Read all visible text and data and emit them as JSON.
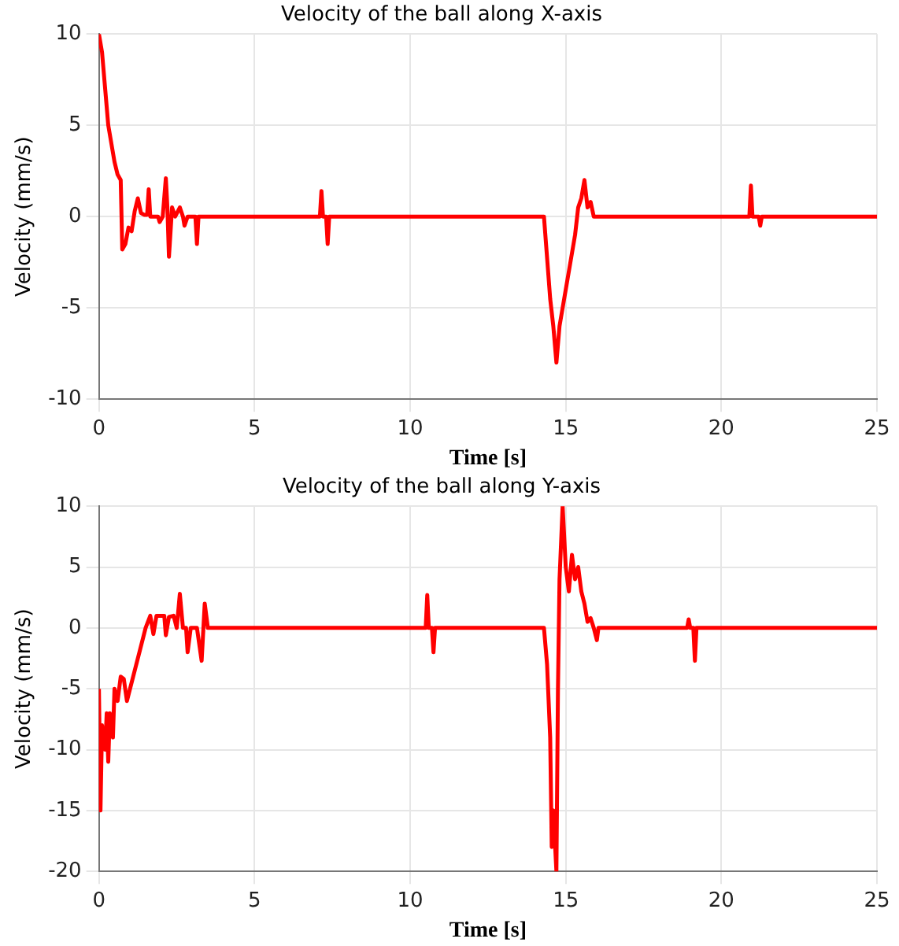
{
  "chart_data": [
    {
      "type": "line",
      "title": "Velocity of the ball along X-axis",
      "xlabel": "Time [s]",
      "ylabel": "Velocity (mm/s)",
      "xlim": [
        0,
        25
      ],
      "xticks": [
        0,
        5,
        10,
        15,
        20,
        25
      ],
      "ylim": [
        -10,
        10
      ],
      "yticks": [
        -10,
        -5,
        0,
        5,
        10
      ],
      "grid": true,
      "legend": false,
      "marker": "none",
      "series": [
        {
          "color": "#ff0000",
          "x": [
            0,
            0.1,
            0.2,
            0.3,
            0.4,
            0.5,
            0.6,
            0.7,
            0.75,
            0.85,
            0.95,
            1.05,
            1.15,
            1.25,
            1.35,
            1.45,
            1.55,
            1.6,
            1.65,
            1.9,
            1.95,
            2.05,
            2.15,
            2.2,
            2.25,
            2.35,
            2.45,
            2.6,
            2.7,
            2.75,
            2.85,
            3.1,
            3.15,
            3.2,
            7.1,
            7.15,
            7.2,
            7.3,
            7.35,
            7.4,
            14.3,
            14.5,
            14.6,
            14.7,
            14.8,
            14.9,
            15,
            15.1,
            15.2,
            15.3,
            15.4,
            15.5,
            15.6,
            15.7,
            15.8,
            15.9,
            20.9,
            20.95,
            21,
            21.2,
            21.25,
            21.3,
            25
          ],
          "values": [
            10,
            9,
            7,
            5,
            4,
            3,
            2.3,
            2,
            -1.8,
            -1.5,
            -0.6,
            -0.8,
            0.3,
            1,
            0.2,
            0.1,
            0.1,
            1.5,
            0,
            0,
            -0.3,
            0,
            2.1,
            0.5,
            -2.2,
            0.5,
            0,
            0.5,
            0,
            -0.5,
            0,
            0,
            -1.5,
            0,
            0,
            1.4,
            0,
            0,
            -1.5,
            0,
            0,
            -4.5,
            -6,
            -8,
            -6,
            -5,
            -4,
            -3,
            -2,
            -1,
            0.5,
            1,
            2,
            0.5,
            0.8,
            0,
            0,
            1.7,
            0,
            0,
            -0.5,
            0,
            0
          ]
        }
      ]
    },
    {
      "type": "line",
      "title": "Velocity of the ball along Y-axis",
      "xlabel": "Time [s]",
      "ylabel": "Velocity (mm/s)",
      "xlim": [
        0,
        25
      ],
      "xticks": [
        0,
        5,
        10,
        15,
        20,
        25
      ],
      "ylim": [
        -20,
        10
      ],
      "yticks": [
        -20,
        -15,
        -10,
        -5,
        0,
        5,
        10
      ],
      "grid": true,
      "legend": false,
      "marker": "none",
      "series": [
        {
          "color": "#ff0000",
          "x": [
            0,
            0.05,
            0.1,
            0.2,
            0.25,
            0.3,
            0.35,
            0.45,
            0.5,
            0.6,
            0.7,
            0.8,
            0.9,
            1,
            1.3,
            1.5,
            1.65,
            1.75,
            1.85,
            2.1,
            2.15,
            2.25,
            2.4,
            2.5,
            2.6,
            2.7,
            2.8,
            2.85,
            2.95,
            3.15,
            3.3,
            3.4,
            3.5,
            10.5,
            10.55,
            10.6,
            10.7,
            10.75,
            10.8,
            14.3,
            14.4,
            14.5,
            14.55,
            14.6,
            14.7,
            14.75,
            14.8,
            14.9,
            15,
            15.1,
            15.2,
            15.3,
            15.4,
            15.5,
            15.6,
            15.7,
            15.8,
            15.9,
            16,
            16.05,
            18.9,
            18.95,
            19,
            19.1,
            19.15,
            19.2,
            25
          ],
          "values": [
            -5,
            -15,
            -8,
            -10,
            -7,
            -11,
            -7,
            -9,
            -5,
            -6,
            -4,
            -4.2,
            -6,
            -5,
            -2,
            0,
            1,
            -0.5,
            1,
            1,
            -0.6,
            0.9,
            1,
            0,
            2.8,
            0,
            0,
            -2,
            0,
            0,
            -2.7,
            2,
            0,
            0,
            2.7,
            0,
            0,
            -2,
            0,
            0,
            -3,
            -9,
            -18,
            -15,
            -20,
            -5,
            4,
            10,
            5,
            3,
            6,
            4,
            5,
            3,
            2,
            0.5,
            0.8,
            0,
            -1,
            0,
            0,
            0.7,
            0,
            0,
            -2.7,
            0,
            0
          ]
        }
      ]
    }
  ]
}
